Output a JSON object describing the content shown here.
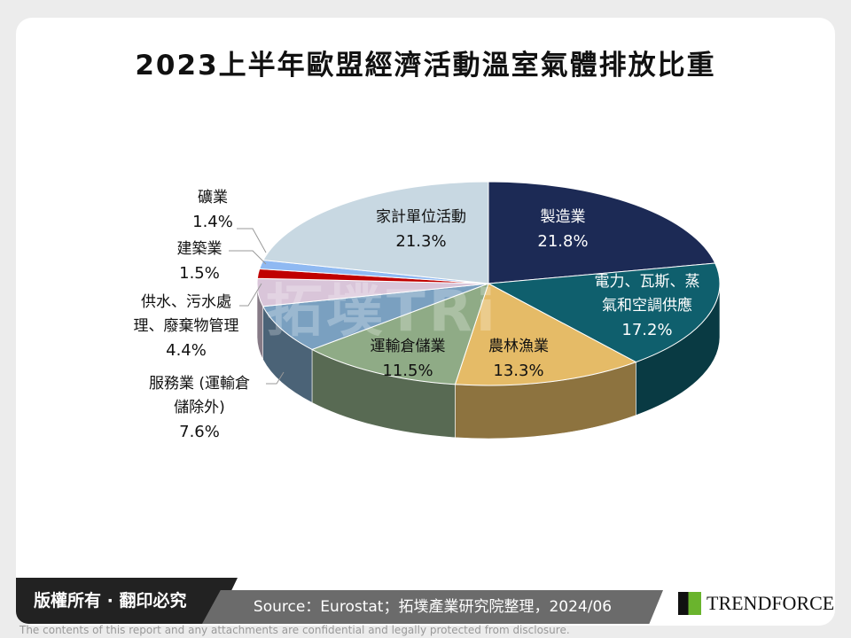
{
  "chart_data": {
    "type": "pie",
    "title": "2023上半年歐盟經濟活動溫室氣體排放比重",
    "slices": [
      {
        "label": "製造業",
        "value": 21.8,
        "color": "#1c2a55"
      },
      {
        "label": "電力、瓦斯、蒸氣和空調供應",
        "value": 17.2,
        "color": "#0f5f6d"
      },
      {
        "label": "農林漁業",
        "value": 13.3,
        "color": "#e5bb67"
      },
      {
        "label": "運輸倉儲業",
        "value": 11.5,
        "color": "#8fab86"
      },
      {
        "label": "服務業 (運輸倉儲除外)",
        "value": 7.6,
        "color": "#7aa0c0"
      },
      {
        "label": "供水、污水處理、廢棄物管理",
        "value": 4.4,
        "color": "#d9c5d9"
      },
      {
        "label": "建築業",
        "value": 1.5,
        "color": "#c00000"
      },
      {
        "label": "礦業",
        "value": 1.4,
        "color": "#8fb9f2"
      },
      {
        "label": "家計單位活動",
        "value": 21.3,
        "color": "#c8d8e2"
      }
    ],
    "value_labels": [
      "21.8%",
      "17.2%",
      "13.3%",
      "11.5%",
      "7.6%",
      "4.4%",
      "1.5%",
      "1.4%",
      "21.3%"
    ],
    "style": "3d"
  },
  "label_lines": {
    "elec_1": "電力、瓦斯、蒸",
    "elec_2": "氣和空調供應",
    "svc_1": "服務業 (運輸倉",
    "svc_2": "儲除外)",
    "water_1": "供水、污水處",
    "water_2": "理、廢棄物管理"
  },
  "watermark": "拓墣TRi",
  "footer": {
    "copyright": "版權所有 · 翻印必究",
    "source": "Source：Eurostat；拓墣產業研究院整理，2024/06",
    "logo": "TRENDFORCE",
    "disclaimer": "The contents of this report and any attachments are confidential and legally protected from disclosure."
  }
}
